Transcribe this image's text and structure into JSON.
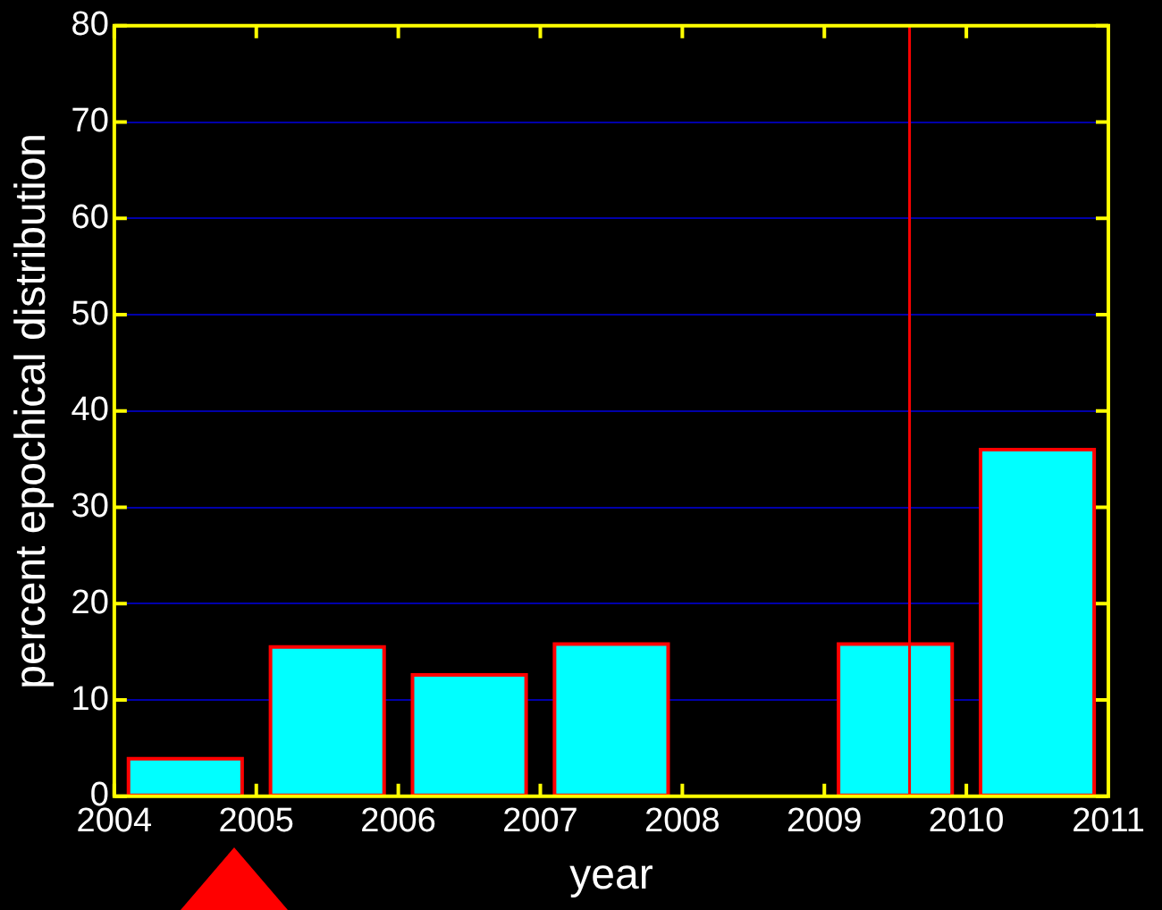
{
  "chart_data": {
    "type": "bar",
    "xlabel": "year",
    "ylabel": "percent epochical distribution",
    "x": [
      2004.5,
      2005.5,
      2006.5,
      2007.5,
      2008.5,
      2009.5,
      2010.5
    ],
    "values": [
      3.9,
      15.5,
      12.6,
      15.8,
      0,
      15.8,
      36.0
    ],
    "color": "#00ffff",
    "xlim": [
      2004,
      2011
    ],
    "xticks": [
      2004,
      2005,
      2006,
      2007,
      2008,
      2009,
      2010,
      2011
    ],
    "ylim": [
      0,
      80
    ],
    "yticks": [
      0,
      10,
      20,
      30,
      40,
      50,
      60,
      70,
      80
    ],
    "grid": "y",
    "legend": false,
    "ref_lines": [
      {
        "axis": "x",
        "value": 2009.6,
        "color": "#ff0000"
      }
    ]
  }
}
